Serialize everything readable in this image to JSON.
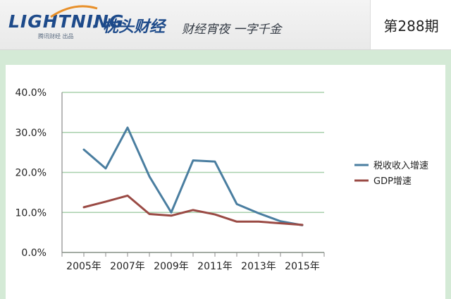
{
  "header": {
    "logo_text": "LIGHTNING",
    "logo_sub": "腾讯财经 出品",
    "separator": "·",
    "brand": "枕头财经",
    "slogan": "财经宵夜 一字千金",
    "issue": "第288期"
  },
  "chart_data": {
    "type": "line",
    "title": "",
    "xlabel": "",
    "ylabel": "",
    "x": [
      2005,
      2006,
      2007,
      2008,
      2009,
      2010,
      2011,
      2012,
      2013,
      2014,
      2015
    ],
    "x_tick_labels": [
      "2005年",
      "2007年",
      "2009年",
      "2011年",
      "2013年",
      "2015年"
    ],
    "x_tick_values": [
      2005,
      2007,
      2009,
      2011,
      2013,
      2015
    ],
    "y_tick_labels": [
      "0.0%",
      "10.0%",
      "20.0%",
      "30.0%",
      "40.0%"
    ],
    "y_tick_values": [
      0,
      10,
      20,
      30,
      40
    ],
    "ylim": [
      0,
      40
    ],
    "xlim": [
      2004,
      2016
    ],
    "grid": true,
    "legend": "right",
    "series": [
      {
        "name": "税收收入增速",
        "color": "#4a7ea0",
        "values": [
          25.7,
          21.0,
          31.2,
          19.0,
          10.0,
          23.0,
          22.7,
          12.1,
          9.8,
          7.8,
          6.8
        ]
      },
      {
        "name": "GDP增速",
        "color": "#9a4a44",
        "values": [
          11.3,
          12.7,
          14.2,
          9.6,
          9.2,
          10.6,
          9.5,
          7.7,
          7.7,
          7.3,
          6.9
        ]
      }
    ]
  }
}
